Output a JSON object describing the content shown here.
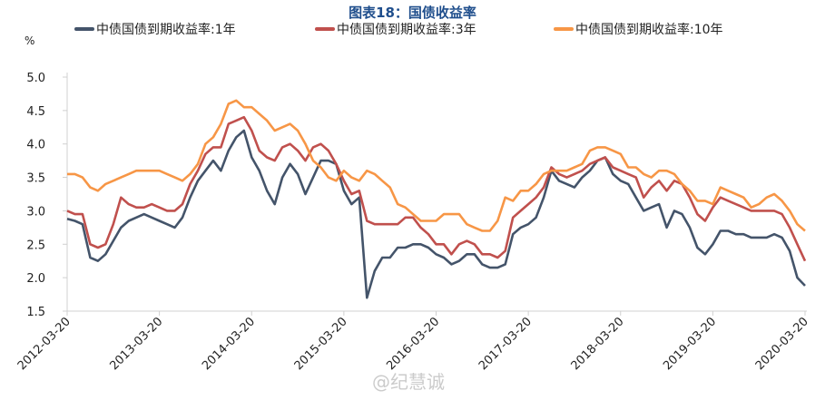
{
  "chart_data": {
    "type": "line",
    "title": "图表18：国债收益率",
    "ylabel": "%",
    "xlabel": "",
    "ylim": [
      1.5,
      5.0
    ],
    "yticks": [
      "1.5",
      "2.0",
      "2.5",
      "3.0",
      "3.5",
      "4.0",
      "4.5",
      "5.0"
    ],
    "xticks": [
      "2012-03-20",
      "2013-03-20",
      "2014-03-20",
      "2015-03-20",
      "2016-03-20",
      "2017-03-20",
      "2018-03-20",
      "2019-03-20",
      "2020-03-20"
    ],
    "xlim": [
      "2012-03-20",
      "2020-03-20"
    ],
    "grid": false,
    "legend": "top",
    "x": [
      "2012-03",
      "2012-04",
      "2012-05",
      "2012-06",
      "2012-07",
      "2012-08",
      "2012-09",
      "2012-10",
      "2012-11",
      "2012-12",
      "2013-01",
      "2013-02",
      "2013-03",
      "2013-04",
      "2013-05",
      "2013-06",
      "2013-07",
      "2013-08",
      "2013-09",
      "2013-10",
      "2013-11",
      "2013-12",
      "2014-01",
      "2014-02",
      "2014-03",
      "2014-04",
      "2014-05",
      "2014-06",
      "2014-07",
      "2014-08",
      "2014-09",
      "2014-10",
      "2014-11",
      "2014-12",
      "2015-01",
      "2015-02",
      "2015-03",
      "2015-04",
      "2015-05",
      "2015-06",
      "2015-07",
      "2015-08",
      "2015-09",
      "2015-10",
      "2015-11",
      "2015-12",
      "2016-01",
      "2016-02",
      "2016-03",
      "2016-04",
      "2016-05",
      "2016-06",
      "2016-07",
      "2016-08",
      "2016-09",
      "2016-10",
      "2016-11",
      "2016-12",
      "2017-01",
      "2017-02",
      "2017-03",
      "2017-04",
      "2017-05",
      "2017-06",
      "2017-07",
      "2017-08",
      "2017-09",
      "2017-10",
      "2017-11",
      "2017-12",
      "2018-01",
      "2018-02",
      "2018-03",
      "2018-04",
      "2018-05",
      "2018-06",
      "2018-07",
      "2018-08",
      "2018-09",
      "2018-10",
      "2018-11",
      "2018-12",
      "2019-01",
      "2019-02",
      "2019-03",
      "2019-04",
      "2019-05",
      "2019-06",
      "2019-07",
      "2019-08",
      "2019-09",
      "2019-10",
      "2019-11",
      "2019-12",
      "2020-01",
      "2020-02",
      "2020-03"
    ],
    "series": [
      {
        "name": "中债国债到期收益率:1年",
        "color": "#44546a",
        "values": [
          2.88,
          2.85,
          2.8,
          2.3,
          2.25,
          2.35,
          2.55,
          2.75,
          2.85,
          2.9,
          2.95,
          2.9,
          2.85,
          2.8,
          2.75,
          2.9,
          3.2,
          3.45,
          3.6,
          3.75,
          3.6,
          3.9,
          4.1,
          4.2,
          3.8,
          3.6,
          3.3,
          3.1,
          3.5,
          3.7,
          3.55,
          3.25,
          3.5,
          3.75,
          3.75,
          3.7,
          3.3,
          3.1,
          3.2,
          1.7,
          2.1,
          2.3,
          2.3,
          2.45,
          2.45,
          2.5,
          2.5,
          2.45,
          2.35,
          2.3,
          2.2,
          2.25,
          2.35,
          2.35,
          2.2,
          2.15,
          2.15,
          2.2,
          2.65,
          2.75,
          2.8,
          2.9,
          3.2,
          3.6,
          3.45,
          3.4,
          3.35,
          3.5,
          3.6,
          3.75,
          3.8,
          3.55,
          3.45,
          3.4,
          3.2,
          3.0,
          3.05,
          3.1,
          2.75,
          3.0,
          2.95,
          2.75,
          2.45,
          2.35,
          2.5,
          2.7,
          2.7,
          2.65,
          2.65,
          2.6,
          2.6,
          2.6,
          2.65,
          2.6,
          2.4,
          2.0,
          1.88
        ]
      },
      {
        "name": "中债国债到期收益率:3年",
        "color": "#c0504d",
        "values": [
          3.0,
          2.95,
          2.95,
          2.5,
          2.45,
          2.5,
          2.8,
          3.2,
          3.1,
          3.05,
          3.05,
          3.1,
          3.05,
          3.0,
          3.0,
          3.1,
          3.4,
          3.6,
          3.85,
          3.95,
          3.95,
          4.3,
          4.35,
          4.4,
          4.2,
          3.9,
          3.8,
          3.75,
          3.95,
          4.0,
          3.9,
          3.75,
          3.95,
          4.0,
          3.9,
          3.7,
          3.45,
          3.25,
          3.3,
          2.85,
          2.8,
          2.8,
          2.8,
          2.8,
          2.9,
          2.9,
          2.75,
          2.65,
          2.5,
          2.5,
          2.35,
          2.5,
          2.55,
          2.5,
          2.35,
          2.35,
          2.3,
          2.4,
          2.9,
          3.0,
          3.1,
          3.2,
          3.35,
          3.65,
          3.55,
          3.5,
          3.55,
          3.6,
          3.7,
          3.75,
          3.8,
          3.65,
          3.6,
          3.55,
          3.5,
          3.2,
          3.35,
          3.45,
          3.3,
          3.45,
          3.4,
          3.2,
          2.95,
          2.85,
          3.05,
          3.2,
          3.15,
          3.1,
          3.05,
          3.0,
          3.0,
          3.0,
          3.0,
          2.95,
          2.75,
          2.5,
          2.25
        ]
      },
      {
        "name": "中债国债到期收益率:10年",
        "color": "#f79646",
        "values": [
          3.55,
          3.55,
          3.5,
          3.35,
          3.3,
          3.4,
          3.45,
          3.5,
          3.55,
          3.6,
          3.6,
          3.6,
          3.6,
          3.55,
          3.5,
          3.45,
          3.55,
          3.7,
          4.0,
          4.1,
          4.3,
          4.6,
          4.65,
          4.55,
          4.55,
          4.45,
          4.35,
          4.2,
          4.25,
          4.3,
          4.2,
          4.0,
          3.75,
          3.65,
          3.5,
          3.45,
          3.6,
          3.5,
          3.45,
          3.6,
          3.55,
          3.45,
          3.35,
          3.1,
          3.05,
          2.95,
          2.85,
          2.85,
          2.85,
          2.95,
          2.95,
          2.95,
          2.8,
          2.75,
          2.7,
          2.7,
          2.85,
          3.2,
          3.15,
          3.3,
          3.3,
          3.4,
          3.55,
          3.6,
          3.6,
          3.6,
          3.65,
          3.7,
          3.9,
          3.95,
          3.95,
          3.9,
          3.85,
          3.65,
          3.65,
          3.55,
          3.5,
          3.6,
          3.6,
          3.55,
          3.4,
          3.3,
          3.15,
          3.15,
          3.1,
          3.35,
          3.3,
          3.25,
          3.2,
          3.05,
          3.1,
          3.2,
          3.25,
          3.15,
          3.0,
          2.8,
          2.7
        ]
      }
    ]
  },
  "watermark": "@纪慧诚"
}
